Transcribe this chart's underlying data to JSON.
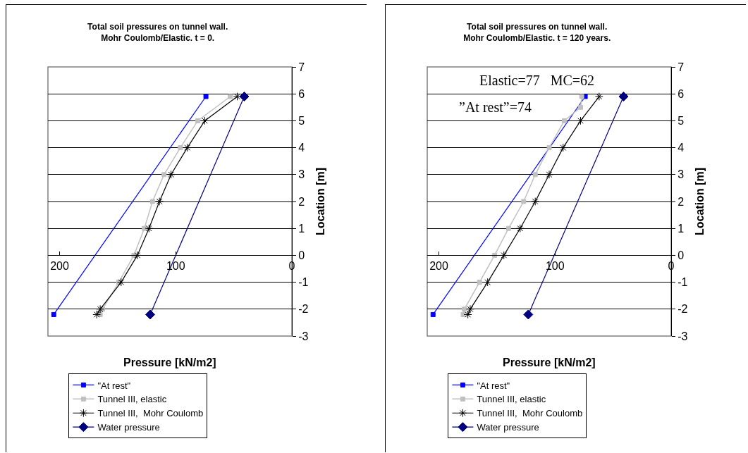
{
  "chart_data": [
    {
      "type": "line",
      "title": "Total soil pressures on tunnel wall.\nMohr Coulomb/Elastic. t = 0.",
      "xlabel": "Pressure [kN/m2]",
      "ylabel": "Location [m]",
      "xlim": [
        210,
        0
      ],
      "xticks": [
        200,
        100,
        0
      ],
      "ylim": [
        -3,
        7
      ],
      "yticks": [
        -3,
        -2,
        -1,
        0,
        1,
        2,
        3,
        4,
        5,
        6,
        7
      ],
      "grid": "y",
      "legend": "bottom",
      "series": [
        {
          "name": "\"At rest\"",
          "color": "#0000ff",
          "marker": "square",
          "x": [
            74,
            205
          ],
          "values": [
            5.9,
            -2.2
          ]
        },
        {
          "name": "Tunnel III, elastic",
          "color": "#c0c0c0",
          "marker": "square",
          "x": [
            53,
            81,
            96,
            110,
            120,
            127,
            136,
            149,
            163,
            165
          ],
          "values": [
            5.9,
            5,
            4,
            3,
            2,
            1,
            0,
            -1,
            -2,
            -2.2
          ]
        },
        {
          "name": "Tunnel III,  Mohr Coulomb",
          "color": "#000000",
          "marker": "cross",
          "x": [
            47,
            75,
            90,
            104,
            114,
            123,
            133,
            147,
            165,
            168
          ],
          "values": [
            5.9,
            5,
            4,
            3,
            2,
            1,
            0,
            -1,
            -2,
            -2.2
          ]
        },
        {
          "name": "Water pressure",
          "color": "#000080",
          "marker": "diamond",
          "x": [
            41,
            122
          ],
          "values": [
            5.9,
            -2.2
          ]
        }
      ]
    },
    {
      "type": "line",
      "title": "Total soil pressures on tunnel wall.\nMohr Coulomb/Elastic. t = 120 years.",
      "xlabel": "Pressure [kN/m2]",
      "ylabel": "Location [m]",
      "xlim": [
        210,
        0
      ],
      "xticks": [
        200,
        100,
        0
      ],
      "ylim": [
        -3,
        7
      ],
      "yticks": [
        -3,
        -2,
        -1,
        0,
        1,
        2,
        3,
        4,
        5,
        6,
        7
      ],
      "grid": "y",
      "legend": "bottom",
      "annotations": [
        "Elastic=77   MC=62",
        "”At rest”=74"
      ],
      "series": [
        {
          "name": "\"At rest\"",
          "color": "#0000ff",
          "marker": "square",
          "x": [
            74,
            205
          ],
          "values": [
            5.9,
            -2.2
          ]
        },
        {
          "name": "Tunnel III, elastic",
          "color": "#c0c0c0",
          "marker": "square",
          "x": [
            77,
            78,
            92,
            105,
            117,
            127,
            140,
            152,
            165,
            178,
            179
          ],
          "values": [
            5.9,
            5.5,
            5,
            4,
            3,
            2,
            1,
            0,
            -1,
            -2,
            -2.2
          ]
        },
        {
          "name": "Tunnel III,  Mohr Coulomb",
          "color": "#000000",
          "marker": "cross",
          "x": [
            62,
            78,
            93,
            105,
            117,
            130,
            144,
            158,
            173,
            175
          ],
          "values": [
            5.9,
            5,
            4,
            3,
            2,
            1,
            0,
            -1,
            -2,
            -2.2
          ]
        },
        {
          "name": "Water pressure",
          "color": "#000080",
          "marker": "diamond",
          "x": [
            41,
            123
          ],
          "values": [
            5.9,
            -2.2
          ]
        }
      ]
    }
  ]
}
